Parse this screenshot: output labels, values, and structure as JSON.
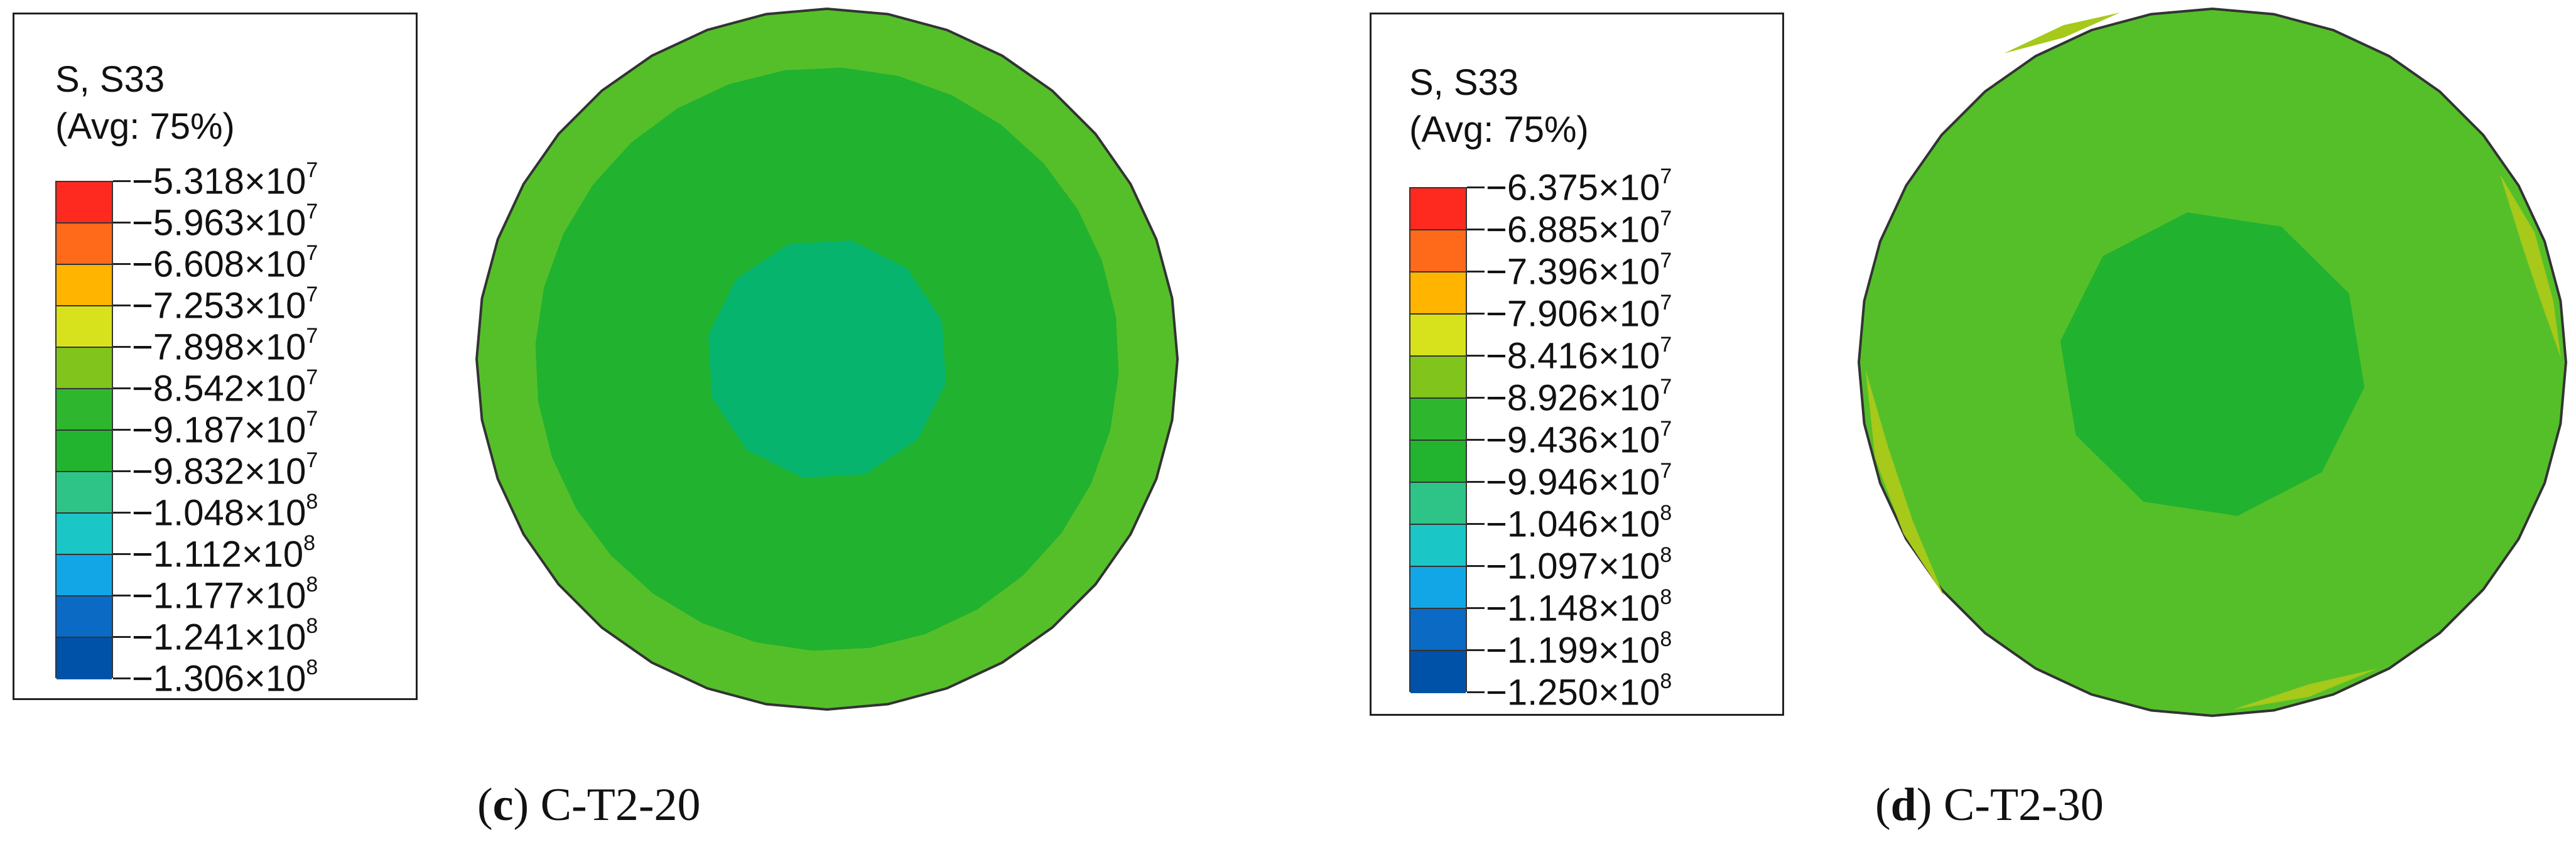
{
  "panels": [
    {
      "id": "c",
      "legend": {
        "title_line1": "S, S33",
        "title_line2": "(Avg: 75%)",
        "colors": [
          "#ff2a1f",
          "#ff6a1a",
          "#ffb400",
          "#d8e21c",
          "#80c41c",
          "#2fb62f",
          "#22b42e",
          "#2fc487",
          "#1bc6c6",
          "#12a6e6",
          "#0b6ac4",
          "#0052a8"
        ],
        "labels": [
          {
            "mant": "−5.318×10",
            "exp": "7"
          },
          {
            "mant": "−5.963×10",
            "exp": "7"
          },
          {
            "mant": "−6.608×10",
            "exp": "7"
          },
          {
            "mant": "−7.253×10",
            "exp": "7"
          },
          {
            "mant": "−7.898×10",
            "exp": "7"
          },
          {
            "mant": "−8.542×10",
            "exp": "7"
          },
          {
            "mant": "−9.187×10",
            "exp": "7"
          },
          {
            "mant": "−9.832×10",
            "exp": "7"
          },
          {
            "mant": "−1.048×10",
            "exp": "8"
          },
          {
            "mant": "−1.112×10",
            "exp": "8"
          },
          {
            "mant": "−1.177×10",
            "exp": "8"
          },
          {
            "mant": "−1.241×10",
            "exp": "8"
          },
          {
            "mant": "−1.306×10",
            "exp": "8"
          }
        ]
      },
      "caption": {
        "letter": "c",
        "text": "C-T2-20"
      },
      "contour_colors": {
        "outer": "#55bf2a",
        "middle": "#21b22f",
        "inner": "#06b46e"
      }
    },
    {
      "id": "d",
      "legend": {
        "title_line1": "S, S33",
        "title_line2": "(Avg: 75%)",
        "colors": [
          "#ff2a1f",
          "#ff6a1a",
          "#ffb400",
          "#d8e21c",
          "#80c41c",
          "#2fb62f",
          "#22b42e",
          "#2fc487",
          "#1bc6c6",
          "#12a6e6",
          "#0b6ac4",
          "#0052a8"
        ],
        "labels": [
          {
            "mant": "−6.375×10",
            "exp": "7"
          },
          {
            "mant": "−6.885×10",
            "exp": "7"
          },
          {
            "mant": "−7.396×10",
            "exp": "7"
          },
          {
            "mant": "−7.906×10",
            "exp": "7"
          },
          {
            "mant": "−8.416×10",
            "exp": "7"
          },
          {
            "mant": "−8.926×10",
            "exp": "7"
          },
          {
            "mant": "−9.436×10",
            "exp": "7"
          },
          {
            "mant": "−9.946×10",
            "exp": "7"
          },
          {
            "mant": "−1.046×10",
            "exp": "8"
          },
          {
            "mant": "−1.097×10",
            "exp": "8"
          },
          {
            "mant": "−1.148×10",
            "exp": "8"
          },
          {
            "mant": "−1.199×10",
            "exp": "8"
          },
          {
            "mant": "−1.250×10",
            "exp": "8"
          }
        ]
      },
      "caption": {
        "letter": "d",
        "text": "C-T2-30"
      },
      "contour_colors": {
        "outer": "#55bf2a",
        "edge": "#a6c91a",
        "inner": "#21b22f"
      }
    }
  ]
}
